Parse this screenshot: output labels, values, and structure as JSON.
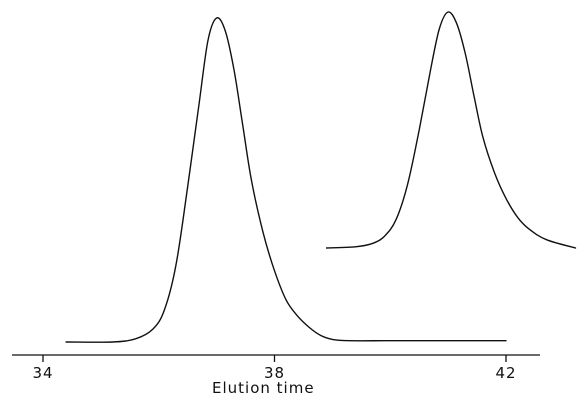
{
  "chart_data": {
    "type": "line",
    "title": "",
    "xlabel": "Elution time",
    "ylabel": "",
    "xlim": [
      33.3,
      43.2
    ],
    "x_ticks": [
      34,
      38,
      42
    ],
    "x_tick_labels": [
      "34",
      "38",
      "42"
    ],
    "grid": false,
    "series": [
      {
        "x": [
          34.4,
          35.2,
          35.6,
          35.9,
          36.1,
          36.3,
          36.5,
          36.7,
          36.85,
          37.0,
          37.15,
          37.3,
          37.45,
          37.6,
          37.8,
          38.0,
          38.2,
          38.4,
          38.6,
          38.8,
          39.0,
          39.3,
          40.0,
          41.0,
          42.0
        ],
        "y": [
          0.0,
          0.0,
          0.01,
          0.04,
          0.1,
          0.24,
          0.48,
          0.74,
          0.93,
          1.0,
          0.96,
          0.84,
          0.67,
          0.5,
          0.34,
          0.22,
          0.13,
          0.08,
          0.045,
          0.02,
          0.008,
          0.004,
          0.004,
          0.004,
          0.004
        ]
      },
      {
        "x": [
          38.9,
          39.4,
          39.7,
          39.9,
          40.1,
          40.3,
          40.5,
          40.7,
          40.85,
          41.0,
          41.15,
          41.3,
          41.45,
          41.6,
          41.8,
          42.0,
          42.2,
          42.4,
          42.7,
          43.2
        ],
        "y": [
          0.0,
          0.005,
          0.02,
          0.05,
          0.12,
          0.27,
          0.5,
          0.76,
          0.93,
          1.0,
          0.95,
          0.82,
          0.64,
          0.47,
          0.32,
          0.21,
          0.13,
          0.08,
          0.035,
          0.0
        ]
      }
    ]
  }
}
